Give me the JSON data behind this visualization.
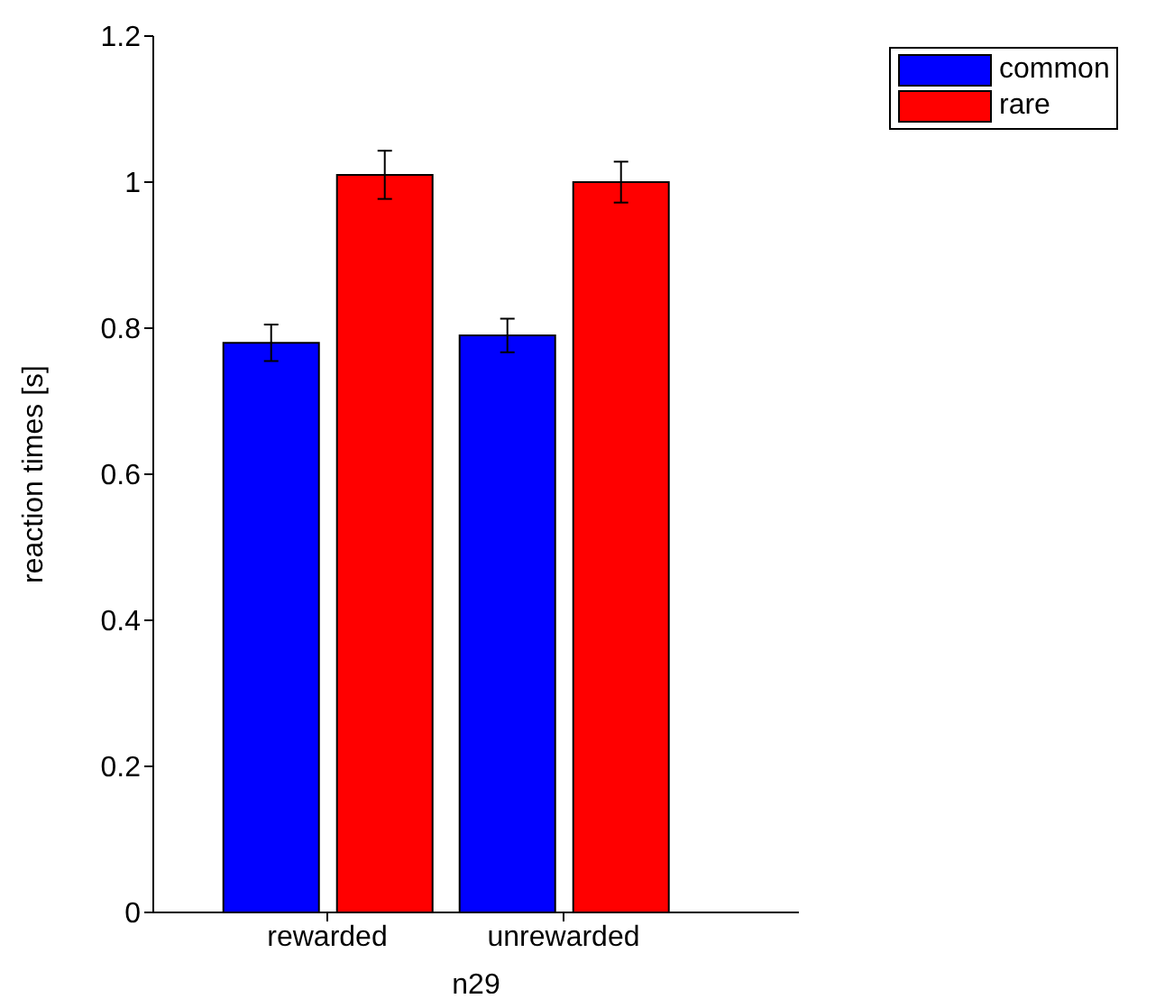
{
  "chart_data": {
    "type": "bar",
    "xlabel": "n29",
    "ylabel": "reaction times [s]",
    "categories": [
      "rewarded",
      "unrewarded"
    ],
    "series": [
      {
        "name": "common",
        "color": "#0000ff",
        "values": [
          0.78,
          0.79
        ],
        "errors": [
          0.025,
          0.023
        ]
      },
      {
        "name": "rare",
        "color": "#ff0000",
        "values": [
          1.01,
          1.0
        ],
        "errors": [
          0.033,
          0.028
        ]
      }
    ],
    "ylim": [
      0,
      1.2
    ],
    "yticks": [
      0,
      0.2,
      0.4,
      0.6,
      0.8,
      1,
      1.2
    ],
    "grid": false,
    "legend": "top right"
  }
}
